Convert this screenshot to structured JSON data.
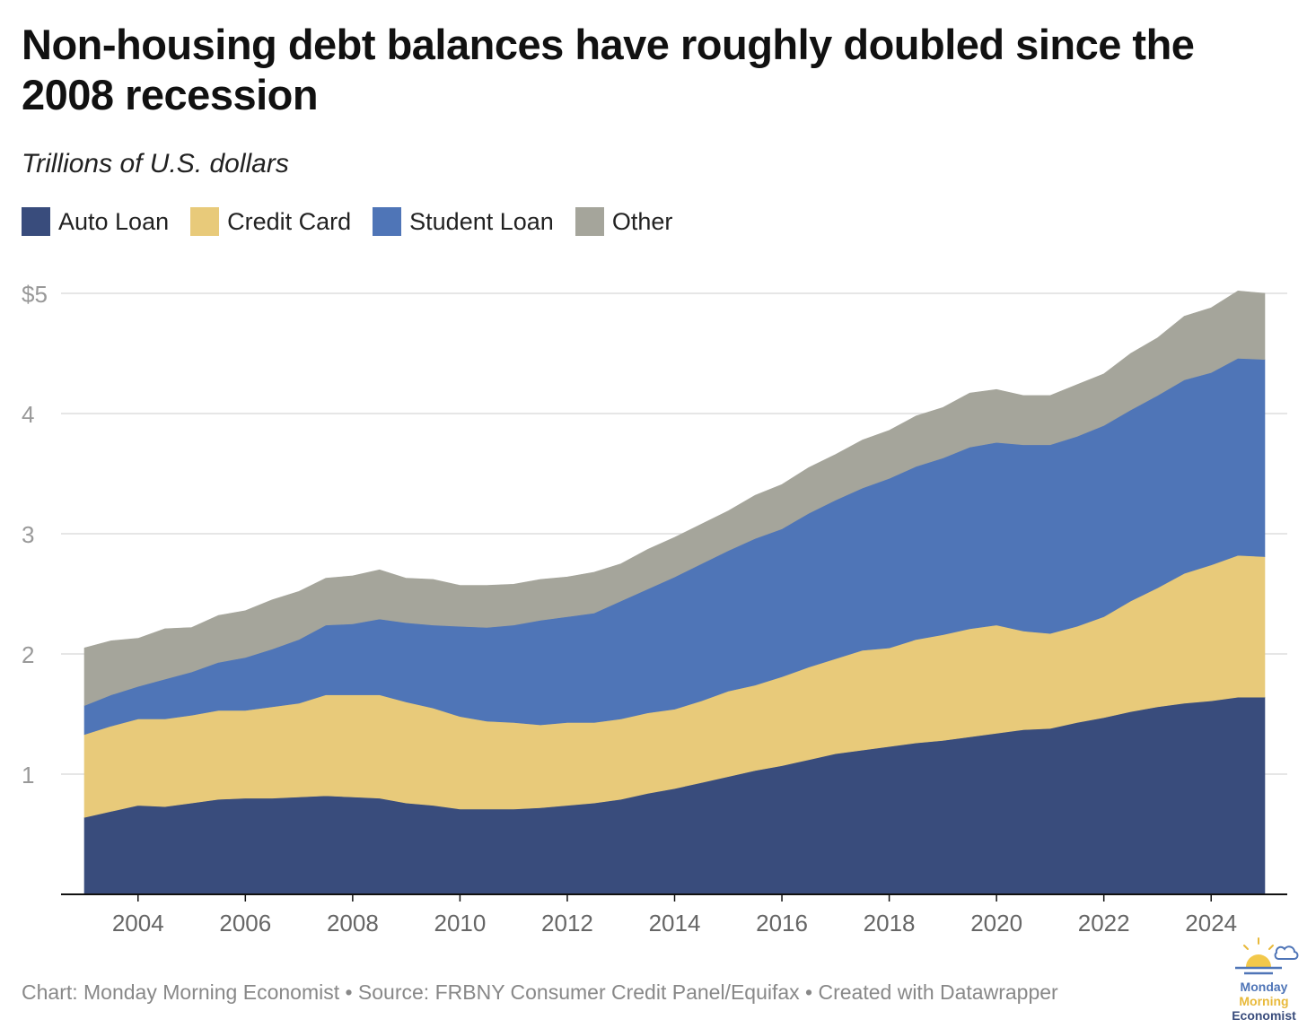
{
  "title": "Non-housing debt balances have roughly doubled since the 2008 recession",
  "subtitle": "Trillions of U.S. dollars",
  "legend": [
    {
      "label": "Auto Loan",
      "color": "#394c7c"
    },
    {
      "label": "Credit Card",
      "color": "#e8ca7a"
    },
    {
      "label": "Student Loan",
      "color": "#4f75b7"
    },
    {
      "label": "Other",
      "color": "#a5a59b"
    }
  ],
  "footer": "Chart: Monday Morning Economist • Source: FRBNY Consumer Credit Panel/Equifax • Created with Datawrapper",
  "logo": {
    "line1": "Monday",
    "line2": "Morning",
    "line3": "Economist"
  },
  "chart_data": {
    "type": "area",
    "stacked": true,
    "title": "Non-housing debt balances have roughly doubled since the 2008 recession",
    "ylabel": "Trillions of U.S. dollars",
    "ylim": [
      0,
      5
    ],
    "xlim": [
      2003,
      2025
    ],
    "yticks": [
      {
        "value": 5,
        "label": "$5"
      },
      {
        "value": 4,
        "label": "4"
      },
      {
        "value": 3,
        "label": "3"
      },
      {
        "value": 2,
        "label": "2"
      },
      {
        "value": 1,
        "label": "1"
      }
    ],
    "xticks": [
      {
        "value": 2004,
        "label": "2004"
      },
      {
        "value": 2006,
        "label": "2006"
      },
      {
        "value": 2008,
        "label": "2008"
      },
      {
        "value": 2010,
        "label": "2010"
      },
      {
        "value": 2012,
        "label": "2012"
      },
      {
        "value": 2014,
        "label": "2014"
      },
      {
        "value": 2016,
        "label": "2016"
      },
      {
        "value": 2018,
        "label": "2018"
      },
      {
        "value": 2020,
        "label": "2020"
      },
      {
        "value": 2022,
        "label": "2022"
      },
      {
        "value": 2024,
        "label": "2024"
      }
    ],
    "x": [
      2003.0,
      2003.5,
      2004.0,
      2004.5,
      2005.0,
      2005.5,
      2006.0,
      2006.5,
      2007.0,
      2007.5,
      2008.0,
      2008.5,
      2009.0,
      2009.5,
      2010.0,
      2010.5,
      2011.0,
      2011.5,
      2012.0,
      2012.5,
      2013.0,
      2013.5,
      2014.0,
      2014.5,
      2015.0,
      2015.5,
      2016.0,
      2016.5,
      2017.0,
      2017.5,
      2018.0,
      2018.5,
      2019.0,
      2019.5,
      2020.0,
      2020.5,
      2021.0,
      2021.5,
      2022.0,
      2022.5,
      2023.0,
      2023.5,
      2024.0,
      2024.5,
      2025.0
    ],
    "series": [
      {
        "name": "Auto Loan",
        "color": "#394c7c",
        "values": [
          0.64,
          0.69,
          0.74,
          0.73,
          0.76,
          0.79,
          0.8,
          0.8,
          0.81,
          0.82,
          0.81,
          0.8,
          0.76,
          0.74,
          0.71,
          0.71,
          0.71,
          0.72,
          0.74,
          0.76,
          0.79,
          0.84,
          0.88,
          0.93,
          0.98,
          1.03,
          1.07,
          1.12,
          1.17,
          1.2,
          1.23,
          1.26,
          1.28,
          1.31,
          1.34,
          1.37,
          1.38,
          1.43,
          1.47,
          1.52,
          1.56,
          1.59,
          1.61,
          1.64,
          1.64
        ]
      },
      {
        "name": "Credit Card",
        "color": "#e8ca7a",
        "values": [
          0.69,
          0.71,
          0.72,
          0.73,
          0.73,
          0.74,
          0.73,
          0.76,
          0.78,
          0.84,
          0.85,
          0.86,
          0.84,
          0.81,
          0.77,
          0.73,
          0.72,
          0.69,
          0.69,
          0.67,
          0.67,
          0.67,
          0.66,
          0.68,
          0.71,
          0.71,
          0.74,
          0.77,
          0.79,
          0.83,
          0.82,
          0.86,
          0.88,
          0.9,
          0.9,
          0.82,
          0.79,
          0.8,
          0.84,
          0.92,
          0.99,
          1.08,
          1.13,
          1.18,
          1.17
        ]
      },
      {
        "name": "Student Loan",
        "color": "#4f75b7",
        "values": [
          0.24,
          0.26,
          0.27,
          0.33,
          0.36,
          0.4,
          0.44,
          0.48,
          0.53,
          0.58,
          0.59,
          0.63,
          0.66,
          0.69,
          0.75,
          0.78,
          0.81,
          0.87,
          0.88,
          0.91,
          0.98,
          1.03,
          1.1,
          1.14,
          1.17,
          1.22,
          1.23,
          1.28,
          1.32,
          1.35,
          1.41,
          1.44,
          1.47,
          1.51,
          1.52,
          1.55,
          1.57,
          1.58,
          1.59,
          1.59,
          1.6,
          1.61,
          1.6,
          1.64,
          1.64
        ]
      },
      {
        "name": "Other",
        "color": "#a5a59b",
        "values": [
          0.48,
          0.45,
          0.4,
          0.42,
          0.37,
          0.39,
          0.39,
          0.41,
          0.4,
          0.39,
          0.4,
          0.41,
          0.37,
          0.38,
          0.34,
          0.35,
          0.34,
          0.34,
          0.33,
          0.34,
          0.31,
          0.33,
          0.33,
          0.33,
          0.33,
          0.36,
          0.37,
          0.38,
          0.38,
          0.4,
          0.4,
          0.42,
          0.42,
          0.45,
          0.44,
          0.41,
          0.41,
          0.43,
          0.43,
          0.47,
          0.48,
          0.53,
          0.54,
          0.56,
          0.55
        ]
      }
    ]
  }
}
